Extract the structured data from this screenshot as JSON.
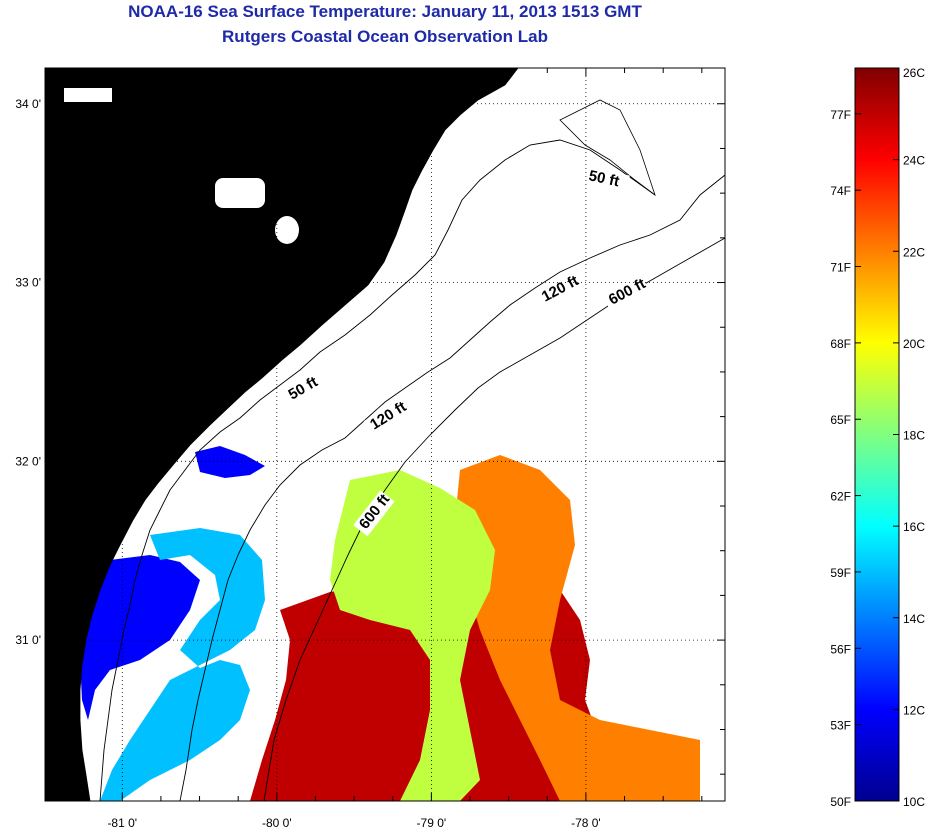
{
  "title": {
    "line1": "NOAA-16 Sea Surface Temperature:  January 11, 2013 1513 GMT",
    "line2": "Rutgers Coastal Ocean Observation Lab"
  },
  "map": {
    "lon_range": [
      -81.5,
      -77.1
    ],
    "lat_range": [
      30.1,
      34.2
    ],
    "lon_ticks": [
      {
        "value": -81,
        "label": "-81 0'"
      },
      {
        "value": -80,
        "label": "-80 0'"
      },
      {
        "value": -79,
        "label": "-79 0'"
      },
      {
        "value": -78,
        "label": "-78 0'"
      }
    ],
    "lat_ticks": [
      {
        "value": 34,
        "label": "34 0'"
      },
      {
        "value": 33,
        "label": "33 0'"
      },
      {
        "value": 32,
        "label": "32 0'"
      },
      {
        "value": 31,
        "label": "31 0'"
      }
    ],
    "grid": "dotted",
    "land_color": "#b3b3b3",
    "no_data_color": "#ffffff",
    "contour_labels": [
      {
        "text": "50 ft",
        "lon": -78.0,
        "lat": 33.6
      },
      {
        "text": "120 ft",
        "lon": -78.9,
        "lat": 32.9
      },
      {
        "text": "600 ft",
        "lon": -78.4,
        "lat": 32.9
      },
      {
        "text": "50 ft",
        "lon": -79.9,
        "lat": 32.4
      },
      {
        "text": "120 ft",
        "lon": -79.5,
        "lat": 32.3
      },
      {
        "text": "600 ft",
        "lon": -79.6,
        "lat": 31.7
      }
    ],
    "sst_patches": [
      {
        "name": "warm-core-southeast",
        "temp_c": 25
      },
      {
        "name": "warm-offshore-east",
        "temp_c": 22
      },
      {
        "name": "transition-band",
        "temp_c": 19
      },
      {
        "name": "cold-coastal-georgia",
        "temp_c": 12
      },
      {
        "name": "cool-inner-shelf",
        "temp_c": 15
      },
      {
        "name": "cold-patch-north",
        "temp_c": 12
      }
    ]
  },
  "colorbar": {
    "min_c": 10,
    "max_c": 26,
    "celsius_ticks": [
      {
        "value": 26,
        "label": "26C"
      },
      {
        "value": 24,
        "label": "24C"
      },
      {
        "value": 22,
        "label": "22C"
      },
      {
        "value": 20,
        "label": "20C"
      },
      {
        "value": 18,
        "label": "18C"
      },
      {
        "value": 16,
        "label": "16C"
      },
      {
        "value": 14,
        "label": "14C"
      },
      {
        "value": 12,
        "label": "12C"
      },
      {
        "value": 10,
        "label": "10C"
      }
    ],
    "fahrenheit_ticks": [
      {
        "value": 77,
        "label": "77F"
      },
      {
        "value": 74,
        "label": "74F"
      },
      {
        "value": 71,
        "label": "71F"
      },
      {
        "value": 68,
        "label": "68F"
      },
      {
        "value": 65,
        "label": "65F"
      },
      {
        "value": 62,
        "label": "62F"
      },
      {
        "value": 59,
        "label": "59F"
      },
      {
        "value": 56,
        "label": "56F"
      },
      {
        "value": 53,
        "label": "53F"
      },
      {
        "value": 50,
        "label": "50F"
      }
    ],
    "colormap": [
      "#00008f",
      "#0000ff",
      "#0080ff",
      "#00ffff",
      "#80ff80",
      "#ffff00",
      "#ff8000",
      "#ff0000",
      "#800000"
    ]
  }
}
